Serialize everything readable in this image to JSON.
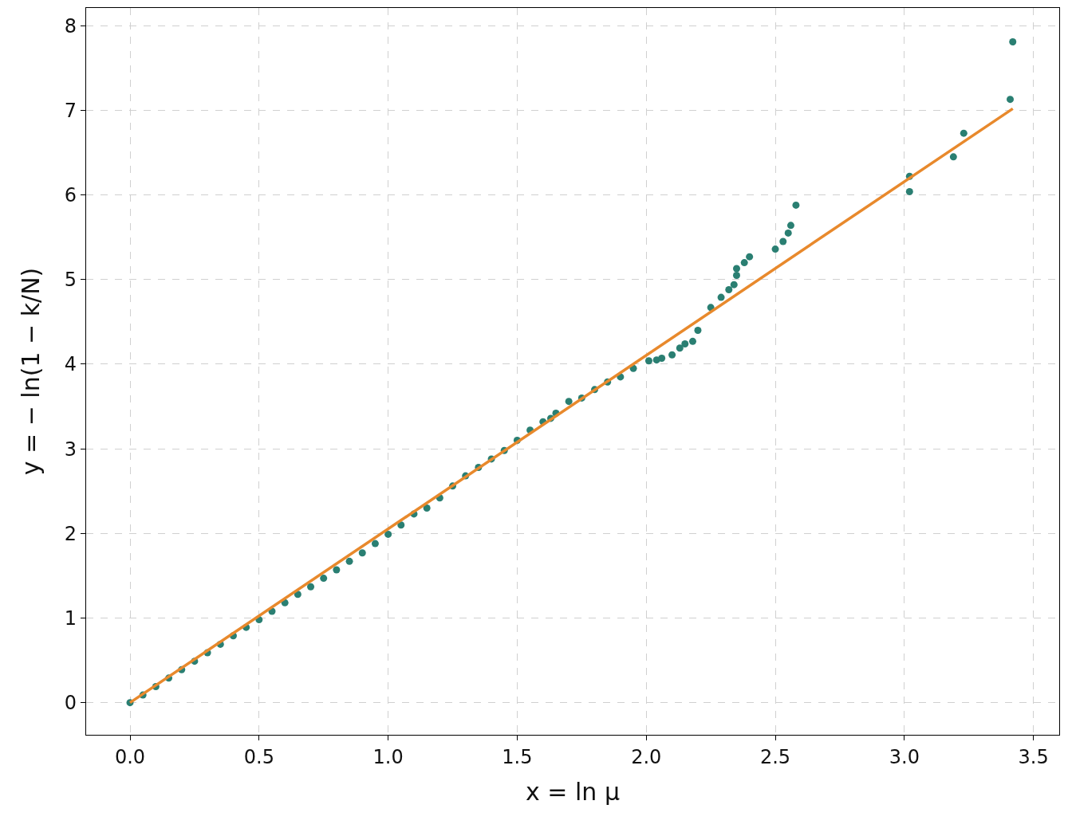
{
  "chart_data": {
    "type": "scatter",
    "xlabel": "x = ln μ",
    "ylabel": "y = − ln(1 − k/N)",
    "xlim": [
      -0.17,
      3.6
    ],
    "ylim": [
      -0.38,
      8.21
    ],
    "xticks": [
      {
        "value": 0,
        "label": "0.0"
      },
      0.5,
      {
        "value": 1,
        "label": "1.0"
      },
      1.5,
      {
        "value": 2,
        "label": "2.0"
      },
      2.5,
      {
        "value": 3,
        "label": "3.0"
      },
      3.5
    ],
    "yticks": [
      0,
      1,
      2,
      3,
      4,
      5,
      6,
      7,
      8
    ],
    "grid": true,
    "marker": "circle",
    "series": [
      {
        "color": "#2a7f72",
        "x": [
          0,
          0.05,
          0.1,
          0.15,
          0.2,
          0.25,
          0.3,
          0.35,
          0.4,
          0.45,
          0.5,
          0.55,
          0.6,
          0.65,
          0.7,
          0.75,
          0.8,
          0.85,
          0.9,
          0.95,
          1.0,
          1.05,
          1.1,
          1.15,
          1.2,
          1.25,
          1.3,
          1.35,
          1.4,
          1.45,
          1.5,
          1.55,
          1.6,
          1.63,
          1.65,
          1.7,
          1.75,
          1.8,
          1.85,
          1.9,
          1.95,
          2.01,
          2.04,
          2.06,
          2.1,
          2.13,
          2.15,
          2.18,
          2.2,
          2.25,
          2.29,
          2.32,
          2.34,
          2.35,
          2.35,
          2.38,
          2.4,
          2.5,
          2.53,
          2.55,
          2.56,
          2.58,
          3.02,
          3.02,
          3.19,
          3.23,
          3.41,
          3.42
        ],
        "values": [
          0,
          0.09,
          0.19,
          0.29,
          0.39,
          0.49,
          0.59,
          0.69,
          0.79,
          0.89,
          0.98,
          1.08,
          1.18,
          1.28,
          1.37,
          1.47,
          1.57,
          1.67,
          1.77,
          1.88,
          1.99,
          2.1,
          2.23,
          2.3,
          2.42,
          2.56,
          2.68,
          2.78,
          2.88,
          2.98,
          3.1,
          3.22,
          3.32,
          3.36,
          3.42,
          3.56,
          3.6,
          3.7,
          3.79,
          3.85,
          3.95,
          4.04,
          4.05,
          4.07,
          4.11,
          4.19,
          4.24,
          4.27,
          4.4,
          4.67,
          4.79,
          4.88,
          4.94,
          5.05,
          5.13,
          5.2,
          5.27,
          5.36,
          5.45,
          5.55,
          5.64,
          5.88,
          6.04,
          6.22,
          6.45,
          6.73,
          7.13,
          7.81
        ]
      },
      {
        "type": "line",
        "marker": "none",
        "color": "#e8892c",
        "x": [
          0,
          3.42
        ],
        "values": [
          0,
          7.02
        ]
      }
    ]
  }
}
